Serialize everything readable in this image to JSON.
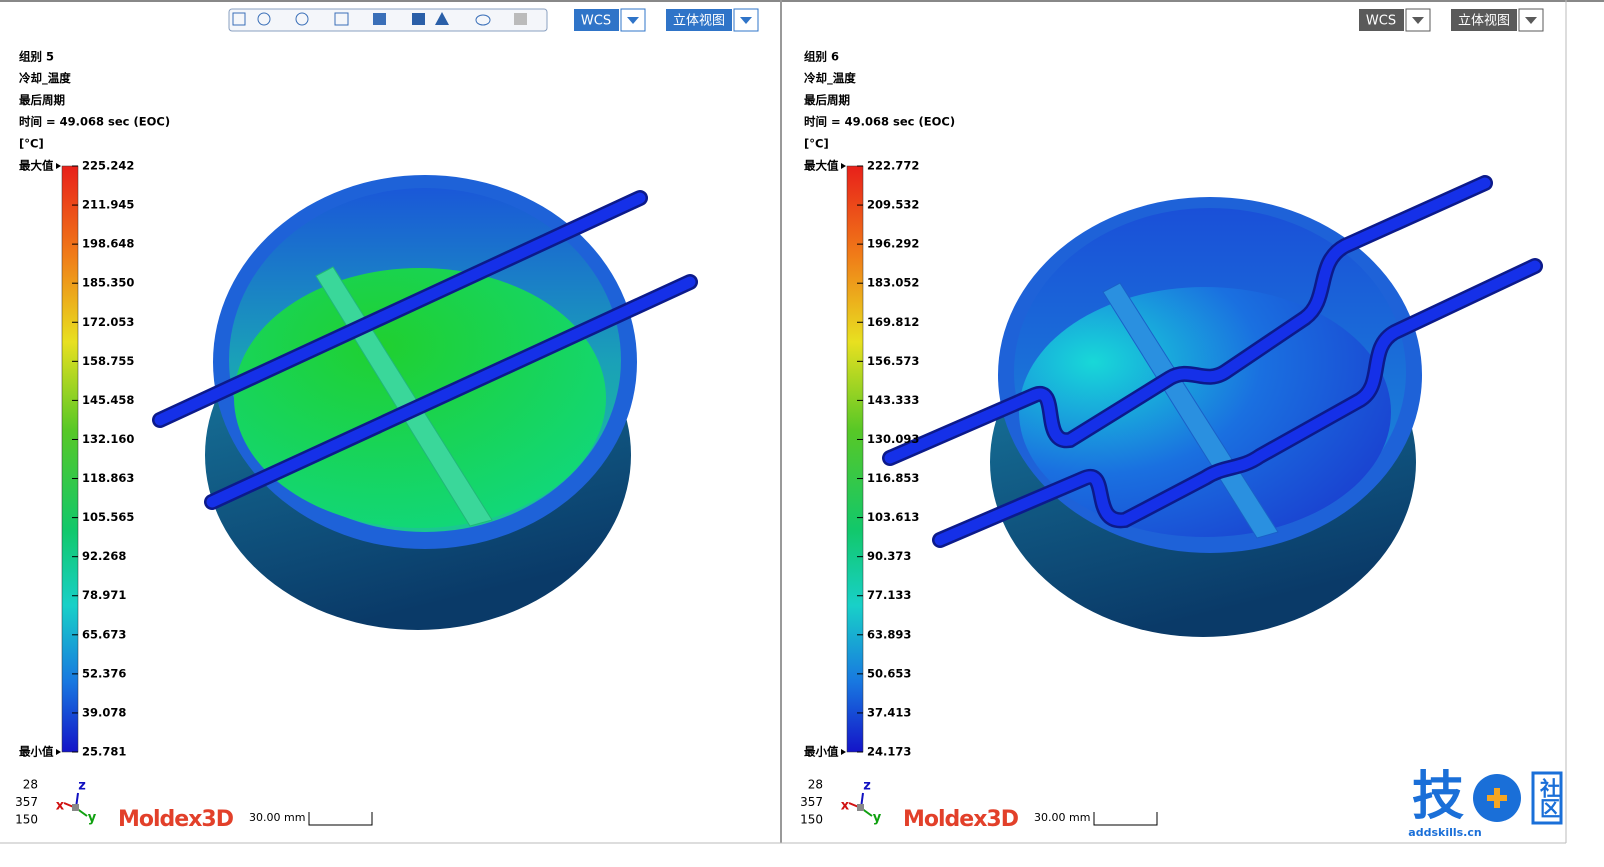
{
  "panels": [
    {
      "group": "组别 5",
      "result": "冷却_温度",
      "cycle": "最后周期",
      "time": "时间  =  49.068 sec (EOC)",
      "unit": "[°C]",
      "max_label": "最大值",
      "min_label": "最小值",
      "legend_values": [
        "225.242",
        "211.945",
        "198.648",
        "185.350",
        "172.053",
        "158.755",
        "145.458",
        "132.160",
        "118.863",
        "105.565",
        "92.268",
        "78.971",
        "65.673",
        "52.376",
        "39.078",
        "25.781"
      ],
      "view_angles": [
        "28",
        "357",
        "150"
      ],
      "axes": [
        "z",
        "x",
        "y"
      ],
      "brand": "Moldex3D",
      "scale": "30.00 mm",
      "coord_button": "WCS",
      "view_button": "立体视图"
    },
    {
      "group": "组别 6",
      "result": "冷却_温度",
      "cycle": "最后周期",
      "time": "时间  =  49.068 sec (EOC)",
      "unit": "[°C]",
      "max_label": "最大值",
      "min_label": "最小值",
      "legend_values": [
        "222.772",
        "209.532",
        "196.292",
        "183.052",
        "169.812",
        "156.573",
        "143.333",
        "130.093",
        "116.853",
        "103.613",
        "90.373",
        "77.133",
        "63.893",
        "50.653",
        "37.413",
        "24.173"
      ],
      "view_angles": [
        "28",
        "357",
        "150"
      ],
      "axes": [
        "z",
        "x",
        "y"
      ],
      "brand": "Moldex3D",
      "scale": "30.00 mm",
      "coord_button": "WCS",
      "view_button": "立体视图"
    }
  ],
  "watermark": {
    "char": "技",
    "badge": "社区",
    "site": "addskills.cn"
  }
}
